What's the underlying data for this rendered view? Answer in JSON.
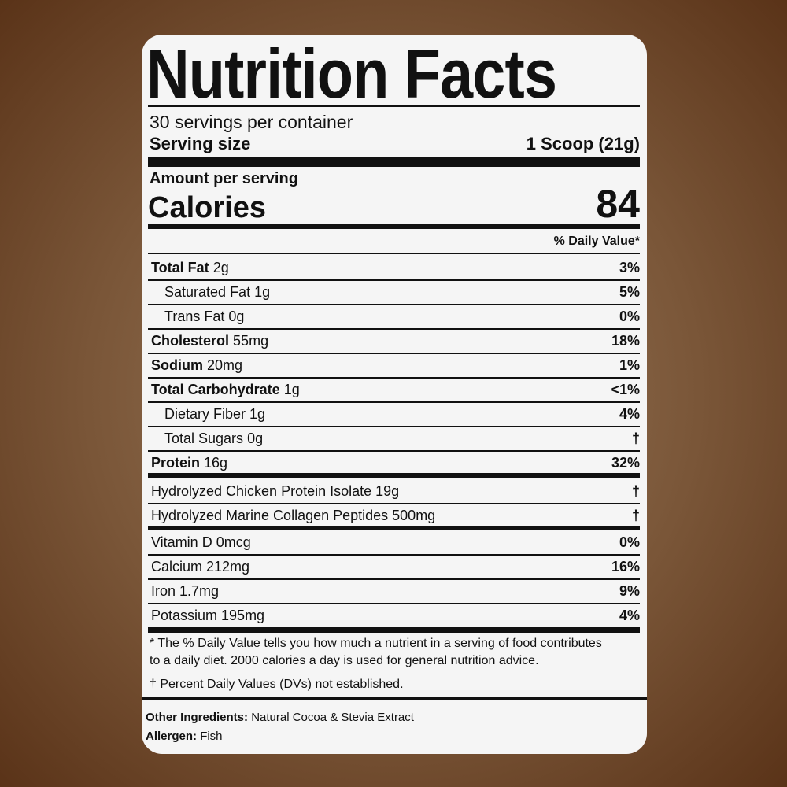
{
  "title": "Nutrition Facts",
  "servings_per_container": "30 servings per container",
  "serving_size_label": "Serving size",
  "serving_size_value": "1 Scoop (21g)",
  "amount_per_serving": "Amount per serving",
  "calories_label": "Calories",
  "calories_value": "84",
  "daily_value_header": "% Daily Value*",
  "nutrients": [
    {
      "name": "Total Fat",
      "amount": "2g",
      "dv": "3%",
      "bold": true
    },
    {
      "name": "Saturated Fat",
      "amount": "1g",
      "dv": "5%",
      "bold": false
    },
    {
      "name": "Trans Fat",
      "amount": "0g",
      "dv": "0%",
      "bold": false
    },
    {
      "name": "Cholesterol",
      "amount": "55mg",
      "dv": "18%",
      "bold": true
    },
    {
      "name": "Sodium",
      "amount": "20mg",
      "dv": "1%",
      "bold": true
    },
    {
      "name": "Total Carbohydrate",
      "amount": "1g",
      "dv": "<1%",
      "bold": true
    },
    {
      "name": "Dietary Fiber",
      "amount": "1g",
      "dv": "4%",
      "bold": false
    },
    {
      "name": "Total Sugars",
      "amount": "0g",
      "dv": "†",
      "bold": false
    },
    {
      "name": "Protein",
      "amount": "16g",
      "dv": "32%",
      "bold": true
    }
  ],
  "proprietary": [
    {
      "name": "Hydrolyzed Chicken Protein Isolate 19g",
      "dv": "†"
    },
    {
      "name": "Hydrolyzed Marine Collagen Peptides 500mg",
      "dv": "†"
    }
  ],
  "vitamins": [
    {
      "name": "Vitamin D 0mcg",
      "dv": "0%"
    },
    {
      "name": "Calcium 212mg",
      "dv": "16%"
    },
    {
      "name": "Iron 1.7mg",
      "dv": "9%"
    },
    {
      "name": "Potassium 195mg",
      "dv": "4%"
    }
  ],
  "footnote_1": "* The % Daily Value tells you how much a nutrient in a serving of food contributes",
  "footnote_2": "to a daily diet. 2000 calories a day is used for general nutrition advice.",
  "footnote_dagger": "† Percent Daily Values (DVs) not established.",
  "other_ingredients_label": "Other Ingredients:",
  "other_ingredients_value": "Natural Cocoa & Stevia Extract",
  "allergen_label": "Allergen:",
  "allergen_value": "Fish"
}
